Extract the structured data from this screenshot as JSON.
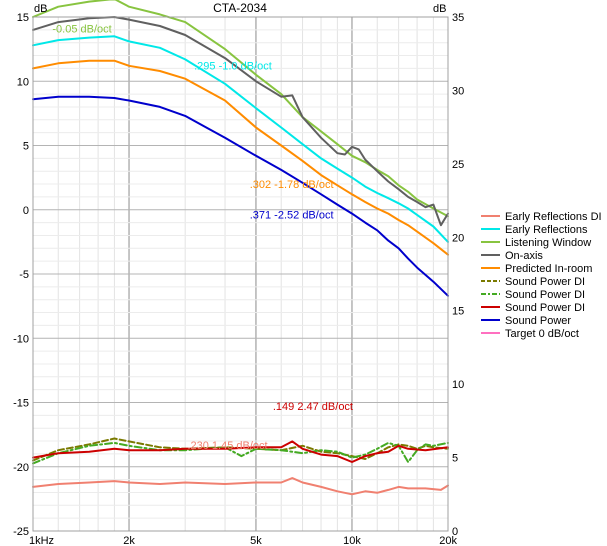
{
  "chart_data": {
    "type": "line",
    "title": "CTA-2034",
    "left_unit": "dB",
    "right_unit": "dB",
    "x_scale": "log",
    "xlim": [
      1000,
      20000
    ],
    "ylim_left": [
      -25,
      15
    ],
    "ylim_right": [
      0,
      35
    ],
    "grid": true,
    "legend_placement": "right",
    "x_tick_labels": [
      {
        "value": 1000,
        "label": "1kHz"
      },
      {
        "value": 2000,
        "label": "2k"
      },
      {
        "value": 5000,
        "label": "5k"
      },
      {
        "value": 10000,
        "label": "10k"
      },
      {
        "value": 20000,
        "label": "20k"
      }
    ],
    "y_left_ticks": [
      15,
      10,
      5,
      0,
      -5,
      -10,
      -15,
      -20,
      -25
    ],
    "y_right_ticks": [
      35,
      30,
      25,
      20,
      15,
      10,
      5,
      0
    ],
    "series": [
      {
        "name": "Early Reflections DI",
        "color": "#f08070",
        "dash": "solid",
        "axis": "right",
        "x": [
          1000,
          1200,
          1500,
          1800,
          2000,
          2500,
          3000,
          4000,
          5000,
          6000,
          6500,
          7000,
          8000,
          9000,
          10000,
          11000,
          12000,
          13000,
          14000,
          15000,
          17000,
          19000,
          20000
        ],
        "y": [
          3.0,
          3.2,
          3.3,
          3.4,
          3.3,
          3.2,
          3.3,
          3.2,
          3.3,
          3.3,
          3.6,
          3.3,
          3.0,
          2.7,
          2.5,
          2.7,
          2.6,
          2.8,
          3.0,
          2.9,
          2.9,
          2.8,
          3.1
        ]
      },
      {
        "name": "Early Reflections",
        "color": "#00e8e8",
        "dash": "solid",
        "axis": "left",
        "x": [
          1000,
          1200,
          1500,
          1800,
          2000,
          2500,
          3000,
          4000,
          5000,
          6000,
          7000,
          8000,
          9000,
          10000,
          11000,
          12000,
          13000,
          14000,
          15000,
          16000,
          18000,
          20000
        ],
        "y": [
          12.8,
          13.2,
          13.4,
          13.5,
          13.1,
          12.6,
          11.7,
          9.8,
          7.9,
          6.4,
          5.1,
          4.0,
          3.2,
          2.5,
          1.8,
          1.3,
          0.9,
          0.5,
          0.1,
          -0.4,
          -1.3,
          -2.5
        ]
      },
      {
        "name": "Listening Window",
        "color": "#88c440",
        "dash": "solid",
        "axis": "left",
        "x": [
          1000,
          1200,
          1500,
          1800,
          2000,
          2500,
          3000,
          4000,
          5000,
          6000,
          7000,
          8000,
          9000,
          10000,
          11000,
          12000,
          13000,
          14000,
          15000,
          16000,
          18000,
          20000
        ],
        "y": [
          15.0,
          15.8,
          16.2,
          16.4,
          15.8,
          15.2,
          14.6,
          12.5,
          10.5,
          9.0,
          7.2,
          6.1,
          5.1,
          4.2,
          3.7,
          3.1,
          2.6,
          1.9,
          1.4,
          0.8,
          0.1,
          -0.5
        ]
      },
      {
        "name": "On-axis",
        "color": "#606060",
        "dash": "solid",
        "axis": "left",
        "x": [
          1000,
          1200,
          1500,
          1800,
          2000,
          2500,
          3000,
          4000,
          5000,
          6000,
          6500,
          7000,
          8000,
          9000,
          9500,
          10000,
          10500,
          11000,
          12000,
          13000,
          14000,
          15000,
          16000,
          17000,
          18000,
          19000,
          20000
        ],
        "y": [
          14.0,
          14.6,
          14.9,
          15.0,
          14.8,
          14.3,
          13.6,
          11.8,
          10.0,
          8.8,
          8.9,
          7.2,
          5.6,
          4.4,
          4.3,
          4.9,
          4.7,
          3.9,
          3.0,
          2.2,
          1.6,
          1.0,
          0.6,
          0.2,
          0.4,
          -1.2,
          -0.3
        ]
      },
      {
        "name": "Predicted In-room",
        "color": "#ff8c00",
        "dash": "solid",
        "axis": "left",
        "x": [
          1000,
          1200,
          1500,
          1800,
          2000,
          2500,
          3000,
          4000,
          5000,
          6000,
          7000,
          8000,
          9000,
          10000,
          11000,
          12000,
          13000,
          14000,
          15000,
          16000,
          18000,
          20000
        ],
        "y": [
          11.0,
          11.4,
          11.6,
          11.6,
          11.2,
          10.8,
          10.2,
          8.5,
          6.4,
          5.0,
          3.8,
          2.7,
          1.9,
          1.2,
          0.6,
          0.1,
          -0.3,
          -0.8,
          -1.2,
          -1.7,
          -2.6,
          -3.5
        ]
      },
      {
        "name": "Sound Power DI",
        "color": "#7a7a00",
        "dash": "dash",
        "axis": "right",
        "x": [
          1000,
          1200,
          1500,
          1800,
          2000,
          2500,
          3000,
          4000,
          5000,
          6000,
          7000,
          8000,
          9000,
          10000,
          11000,
          12000,
          13000,
          14000,
          15000,
          16000,
          17000,
          18000,
          20000
        ],
        "y": [
          4.8,
          5.5,
          5.9,
          6.3,
          6.1,
          5.7,
          5.6,
          5.7,
          5.6,
          5.5,
          5.8,
          5.4,
          5.3,
          5.1,
          4.9,
          5.3,
          5.7,
          5.9,
          5.8,
          5.6,
          5.8,
          5.7,
          5.6
        ]
      },
      {
        "name": "Sound Power DI",
        "color": "#44aa22",
        "dash": "dashdot",
        "axis": "right",
        "x": [
          1000,
          1200,
          1500,
          1800,
          2000,
          2500,
          3000,
          4000,
          4500,
          5000,
          6000,
          7000,
          8000,
          9000,
          10000,
          11000,
          12000,
          13000,
          14000,
          15000,
          16000,
          17000,
          18000,
          20000
        ],
        "y": [
          4.6,
          5.3,
          5.8,
          6.0,
          5.8,
          5.5,
          5.5,
          5.7,
          5.1,
          5.6,
          5.5,
          5.3,
          5.5,
          5.4,
          5.0,
          5.2,
          5.6,
          6.0,
          5.8,
          4.7,
          5.5,
          5.9,
          5.8,
          6.0
        ]
      },
      {
        "name": "Sound Power DI",
        "color": "#cc0000",
        "dash": "solid",
        "axis": "right",
        "x": [
          1000,
          1200,
          1500,
          1800,
          2000,
          2500,
          3000,
          4000,
          5000,
          6000,
          6500,
          7000,
          8000,
          9000,
          10000,
          11000,
          12000,
          13000,
          14000,
          15000,
          17000,
          20000
        ],
        "y": [
          5.0,
          5.3,
          5.4,
          5.6,
          5.5,
          5.5,
          5.6,
          5.6,
          5.7,
          5.7,
          6.1,
          5.6,
          5.2,
          5.1,
          4.7,
          5.1,
          5.3,
          5.4,
          5.8,
          5.6,
          5.5,
          5.7
        ]
      },
      {
        "name": "Sound Power",
        "color": "#0000cc",
        "dash": "solid",
        "axis": "left",
        "x": [
          1000,
          1200,
          1500,
          1800,
          2000,
          2500,
          3000,
          4000,
          5000,
          6000,
          7000,
          8000,
          9000,
          10000,
          11000,
          12000,
          13000,
          14000,
          15000,
          16000,
          18000,
          20000
        ],
        "y": [
          8.6,
          8.8,
          8.8,
          8.7,
          8.5,
          8.0,
          7.3,
          5.6,
          4.2,
          3.1,
          2.1,
          1.2,
          0.4,
          -0.3,
          -1.0,
          -1.6,
          -2.4,
          -3.0,
          -3.8,
          -4.5,
          -5.6,
          -6.7
        ]
      },
      {
        "name": "Target 0 dB/oct",
        "color": "#ff70c0",
        "dash": "solid",
        "axis": "left",
        "x": [],
        "y": []
      }
    ],
    "annotations": [
      {
        "text": "-0.05 dB/oct",
        "color": "#88c440",
        "x": 1150,
        "y": 13.8
      },
      {
        "text": ".295  -1.0 dB/oct",
        "color": "#00e8e8",
        "x": 3200,
        "y": 10.9
      },
      {
        "text": ".302  -1.78 dB/oct",
        "color": "#ff8c00",
        "x": 4780,
        "y": 1.7
      },
      {
        "text": ".371  -2.52 dB/oct",
        "color": "#0000cc",
        "x": 4780,
        "y": -0.7
      },
      {
        "text": ".149  2.47 dB/oct",
        "color": "#cc0000",
        "x": 5650,
        "y": -15.6
      },
      {
        "text": ".230  1.45 dB/oct",
        "color": "#f08070",
        "x": 3050,
        "y": -18.6
      }
    ]
  }
}
